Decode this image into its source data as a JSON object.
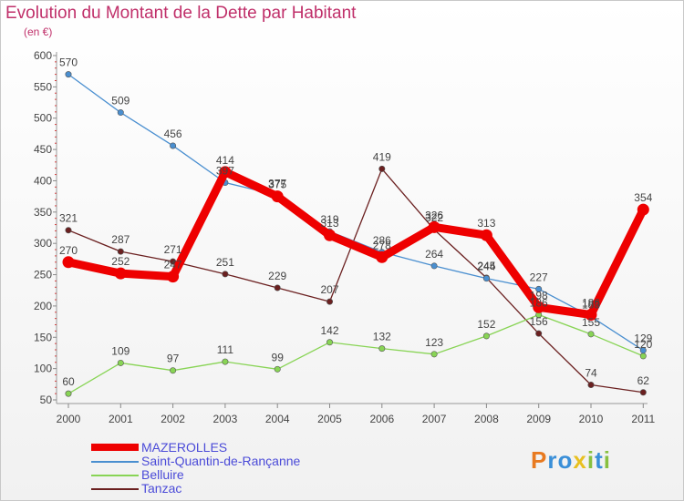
{
  "chart_data": {
    "type": "line",
    "title": "Evolution du Montant de la Dette par Habitant",
    "subtitle": "(en €)",
    "x": [
      "2000",
      "2001",
      "2002",
      "2003",
      "2004",
      "2005",
      "2006",
      "2007",
      "2008",
      "2009",
      "2010",
      "2011"
    ],
    "ylim": [
      50,
      600
    ],
    "yticks": [
      50,
      100,
      150,
      200,
      250,
      300,
      350,
      400,
      450,
      500,
      550,
      600
    ],
    "grid": false,
    "legend_placement": "bottom-left",
    "series": [
      {
        "name": "MAZEROLLES",
        "color": "#ee0000",
        "values": [
          270,
          252,
          247,
          414,
          375,
          313,
          278,
          326,
          313,
          198,
          186,
          354
        ]
      },
      {
        "name": "Saint-Quantin-de-Rançanne",
        "color": "#4a8fd0",
        "values": [
          570,
          509,
          456,
          397,
          377,
          319,
          286,
          264,
          244,
          227,
          183,
          129
        ]
      },
      {
        "name": "Belluire",
        "color": "#88d455",
        "values": [
          60,
          109,
          97,
          111,
          99,
          142,
          132,
          123,
          152,
          186,
          155,
          120
        ]
      },
      {
        "name": "Tanzac",
        "color": "#6b2020",
        "values": [
          321,
          287,
          271,
          251,
          229,
          207,
          419,
          322,
          245,
          156,
          74,
          62
        ]
      }
    ]
  },
  "logo": {
    "text": "Proxiti",
    "letters": [
      "P",
      "r",
      "o",
      "x",
      "i",
      "t",
      "i"
    ],
    "colors": [
      "#e87a20",
      "#3a8fd8",
      "#3a8fd8",
      "#e8c020",
      "#88c040",
      "#3a8fd8",
      "#88c040"
    ]
  }
}
